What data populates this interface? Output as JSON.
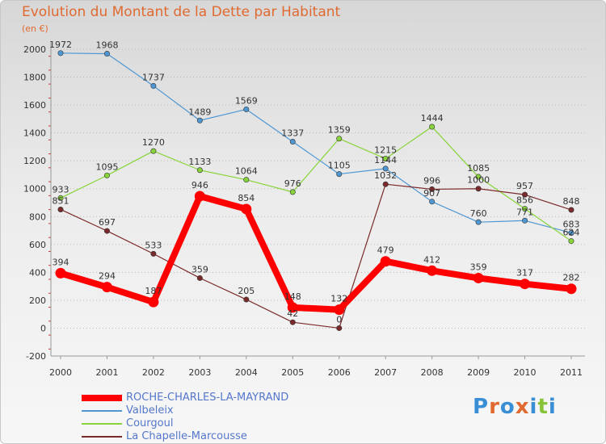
{
  "chart_data": {
    "type": "line",
    "title": "Evolution du Montant de la Dette par Habitant",
    "unit_label": "(en €)",
    "x": [
      "2000",
      "2001",
      "2002",
      "2003",
      "2004",
      "2005",
      "2006",
      "2007",
      "2008",
      "2009",
      "2010",
      "2011"
    ],
    "y_ticks": [
      "-200",
      "0",
      "200",
      "400",
      "600",
      "800",
      "1000",
      "1200",
      "1400",
      "1600",
      "1800",
      "2000"
    ],
    "ylim": [
      -200,
      2000
    ],
    "grid": "horizontal dotted",
    "legend_position": "bottom-left",
    "series": [
      {
        "name": "ROCHE-CHARLES-LA-MAYRAND",
        "color": "#ff0000",
        "values": [
          394,
          294,
          187,
          946,
          854,
          148,
          132,
          479,
          412,
          359,
          317,
          282
        ],
        "labels": [
          "394",
          "294",
          "187",
          "946",
          "854",
          "148",
          "132",
          "479",
          "412",
          "359",
          "317",
          "282"
        ]
      },
      {
        "name": "Valbeleix",
        "color": "#4f97d3",
        "values": [
          1972,
          1968,
          1737,
          1489,
          1569,
          1337,
          1105,
          1144,
          907,
          760,
          771,
          683
        ],
        "labels": [
          "1972",
          "1968",
          "1737",
          "1489",
          "1569",
          "1337",
          "1105",
          "1144",
          "907",
          "760",
          "771",
          "683"
        ]
      },
      {
        "name": "Courgoul",
        "color": "#88d43a",
        "values": [
          933,
          1095,
          1270,
          1133,
          1064,
          976,
          1359,
          1215,
          1444,
          1085,
          856,
          624
        ],
        "labels": [
          "933",
          "1095",
          "1270",
          "1133",
          "1064",
          "976",
          "1359",
          "1215",
          "1444",
          "1085",
          "856",
          "624"
        ]
      },
      {
        "name": "La Chapelle-Marcousse",
        "color": "#7a2a2a",
        "values": [
          851,
          697,
          533,
          359,
          205,
          42,
          0,
          1032,
          996,
          1000,
          957,
          848
        ],
        "labels": [
          "851",
          "697",
          "533",
          "359",
          "205",
          "42",
          "0",
          "1032",
          "996",
          "1000",
          "957",
          "848"
        ]
      }
    ]
  },
  "brand": {
    "text": "Proxiti",
    "letter_colors": [
      "#3a8ed6",
      "#e06a30",
      "#3a8ed6",
      "#e06a30",
      "#3a8ed6",
      "#88c43a",
      "#3a8ed6"
    ]
  }
}
